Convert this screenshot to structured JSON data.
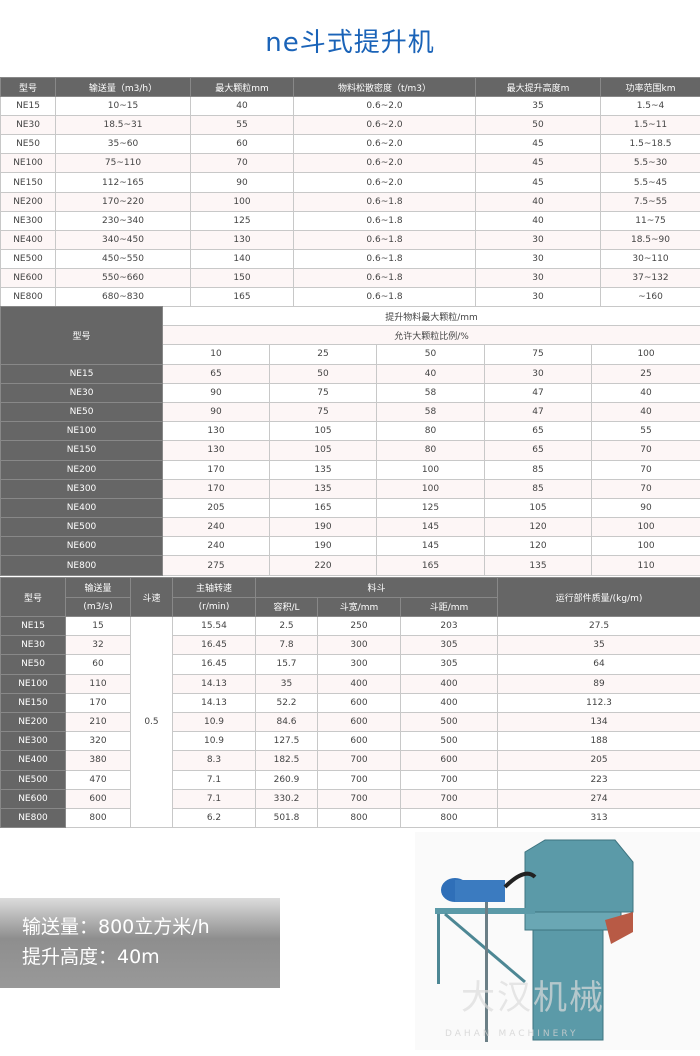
{
  "title": "ne斗式提升机",
  "table1": {
    "headers": [
      "型号",
      "输送量（m3/h）",
      "最大颗粒mm",
      "物料松散密度（t/m3）",
      "最大提升高度m",
      "功率范围km"
    ],
    "rows": [
      [
        "NE15",
        "10~15",
        "40",
        "0.6~2.0",
        "35",
        "1.5~4"
      ],
      [
        "NE30",
        "18.5~31",
        "55",
        "0.6~2.0",
        "50",
        "1.5~11"
      ],
      [
        "NE50",
        "35~60",
        "60",
        "0.6~2.0",
        "45",
        "1.5~18.5"
      ],
      [
        "NE100",
        "75~110",
        "70",
        "0.6~2.0",
        "45",
        "5.5~30"
      ],
      [
        "NE150",
        "112~165",
        "90",
        "0.6~2.0",
        "45",
        "5.5~45"
      ],
      [
        "NE200",
        "170~220",
        "100",
        "0.6~1.8",
        "40",
        "7.5~55"
      ],
      [
        "NE300",
        "230~340",
        "125",
        "0.6~1.8",
        "40",
        "11~75"
      ],
      [
        "NE400",
        "340~450",
        "130",
        "0.6~1.8",
        "30",
        "18.5~90"
      ],
      [
        "NE500",
        "450~550",
        "140",
        "0.6~1.8",
        "30",
        "30~110"
      ],
      [
        "NE600",
        "550~660",
        "150",
        "0.6~1.8",
        "30",
        "37~132"
      ],
      [
        "NE800",
        "680~830",
        "165",
        "0.6~1.8",
        "30",
        "~160"
      ]
    ]
  },
  "table2": {
    "model_header": "型号",
    "header_row1": "提升物料最大颗粒/mm",
    "header_row2": "允许大颗粒比例/%",
    "percent_columns": [
      "10",
      "25",
      "50",
      "75",
      "100"
    ],
    "rows": [
      [
        "NE15",
        "65",
        "50",
        "40",
        "30",
        "25"
      ],
      [
        "NE30",
        "90",
        "75",
        "58",
        "47",
        "40"
      ],
      [
        "NE50",
        "90",
        "75",
        "58",
        "47",
        "40"
      ],
      [
        "NE100",
        "130",
        "105",
        "80",
        "65",
        "55"
      ],
      [
        "NE150",
        "130",
        "105",
        "80",
        "65",
        "70"
      ],
      [
        "NE200",
        "170",
        "135",
        "100",
        "85",
        "70"
      ],
      [
        "NE300",
        "170",
        "135",
        "100",
        "85",
        "70"
      ],
      [
        "NE400",
        "205",
        "165",
        "125",
        "105",
        "90"
      ],
      [
        "NE500",
        "240",
        "190",
        "145",
        "120",
        "100"
      ],
      [
        "NE600",
        "240",
        "190",
        "145",
        "120",
        "100"
      ],
      [
        "NE800",
        "275",
        "220",
        "165",
        "135",
        "110"
      ]
    ]
  },
  "table3": {
    "headers": {
      "model": "型号",
      "capacity": "输送量",
      "capacity_unit": "(m3/s)",
      "speed": "斗速",
      "shaft": "主轴转速",
      "shaft_unit": "(r/min)",
      "bucket": "料斗",
      "volume": "容积/L",
      "width": "斗宽/mm",
      "pitch": "斗距/mm",
      "weight": "运行部件质量/(kg/m)"
    },
    "bucket_speed": "0.5",
    "rows": [
      [
        "NE15",
        "15",
        "15.54",
        "2.5",
        "250",
        "203",
        "27.5"
      ],
      [
        "NE30",
        "32",
        "16.45",
        "7.8",
        "300",
        "305",
        "35"
      ],
      [
        "NE50",
        "60",
        "16.45",
        "15.7",
        "300",
        "305",
        "64"
      ],
      [
        "NE100",
        "110",
        "14.13",
        "35",
        "400",
        "400",
        "89"
      ],
      [
        "NE150",
        "170",
        "14.13",
        "52.2",
        "600",
        "400",
        "112.3"
      ],
      [
        "NE200",
        "210",
        "10.9",
        "84.6",
        "600",
        "500",
        "134"
      ],
      [
        "NE300",
        "320",
        "10.9",
        "127.5",
        "600",
        "500",
        "188"
      ],
      [
        "NE400",
        "380",
        "8.3",
        "182.5",
        "700",
        "600",
        "205"
      ],
      [
        "NE500",
        "470",
        "7.1",
        "260.9",
        "700",
        "700",
        "223"
      ],
      [
        "NE600",
        "600",
        "7.1",
        "330.2",
        "700",
        "700",
        "274"
      ],
      [
        "NE800",
        "800",
        "6.2",
        "501.8",
        "800",
        "800",
        "313"
      ]
    ]
  },
  "banner": {
    "line1": "输送量：800立方米/h",
    "line2": "提升高度：40m"
  },
  "photo": {
    "watermark": "大汉机械",
    "watermark_en": "DAHAN MACHINERY",
    "colors": {
      "body": "#5b9aa8",
      "outlet": "#b85a45",
      "motor": "#2f6fb8"
    }
  }
}
